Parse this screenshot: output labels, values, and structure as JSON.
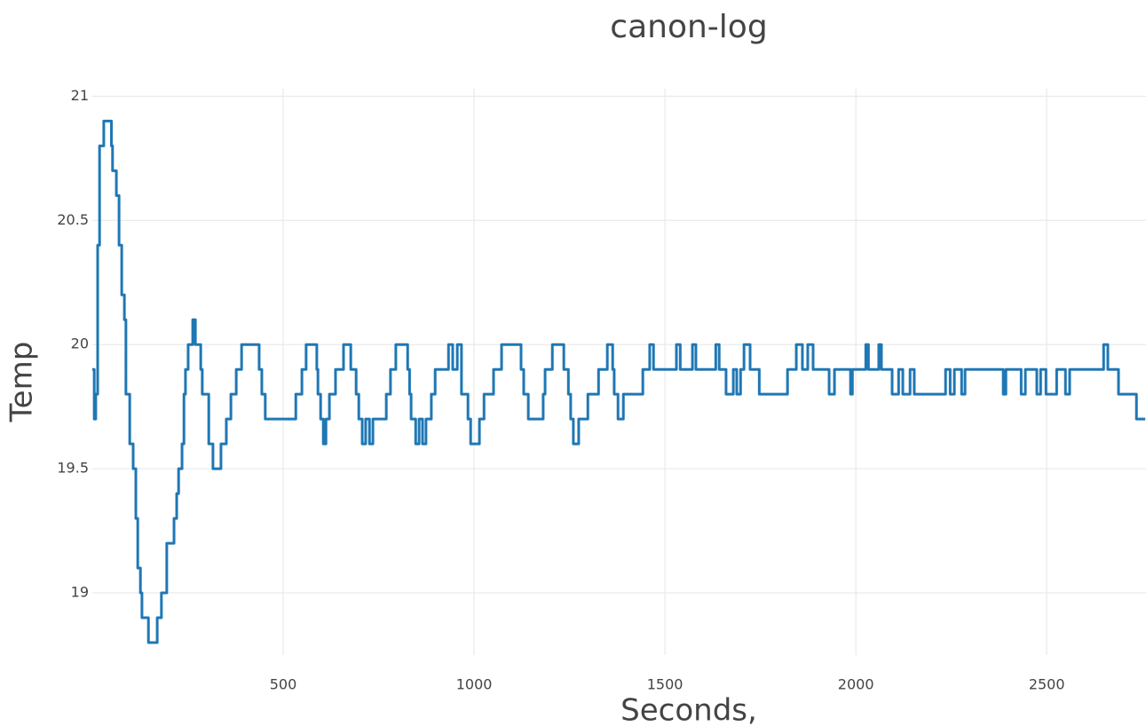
{
  "chart_data": {
    "type": "line",
    "title": "canon-log",
    "x_label": "Seconds,",
    "y_label": "Temp",
    "line_shape": "hv",
    "grid": true,
    "xlim": [
      0,
      2760
    ],
    "ylim": [
      18.75,
      21.03
    ],
    "xticks": [
      500,
      1000,
      1500,
      2000,
      2500
    ],
    "yticks": [
      19,
      19.5,
      20,
      20.5,
      21
    ],
    "x": [
      0,
      5,
      9,
      14,
      19,
      30,
      50,
      53,
      63,
      70,
      77,
      84,
      88,
      98,
      107,
      114,
      119,
      126,
      130,
      147,
      163,
      170,
      181,
      195,
      214,
      221,
      226,
      235,
      240,
      244,
      251,
      263,
      270,
      284,
      288,
      305,
      316,
      337,
      351,
      363,
      377,
      391,
      437,
      444,
      453,
      533,
      549,
      560,
      588,
      591,
      598,
      605,
      612,
      621,
      637,
      658,
      677,
      691,
      698,
      707,
      716,
      726,
      735,
      770,
      781,
      795,
      826,
      831,
      835,
      847,
      856,
      865,
      874,
      888,
      898,
      933,
      944,
      956,
      967,
      984,
      991,
      1014,
      1026,
      1051,
      1072,
      1123,
      1130,
      1142,
      1181,
      1186,
      1205,
      1235,
      1247,
      1253,
      1260,
      1274,
      1298,
      1326,
      1349,
      1363,
      1367,
      1377,
      1391,
      1442,
      1460,
      1470,
      1530,
      1540,
      1572,
      1581,
      1633,
      1642,
      1660,
      1679,
      1688,
      1698,
      1707,
      1723,
      1747,
      1821,
      1844,
      1860,
      1874,
      1888,
      1930,
      1944,
      1986,
      1991,
      2026,
      2033,
      2060,
      2067,
      2095,
      2112,
      2123,
      2142,
      2153,
      2235,
      2247,
      2258,
      2277,
      2286,
      2386,
      2393,
      2433,
      2444,
      2474,
      2484,
      2498,
      2526,
      2549,
      2560,
      2649,
      2660,
      2688,
      2735,
      2758
    ],
    "series": [
      {
        "color": "#1f77b4",
        "values": [
          19.9,
          19.7,
          19.8,
          20.4,
          20.8,
          20.9,
          20.8,
          20.7,
          20.6,
          20.4,
          20.2,
          20.1,
          19.8,
          19.6,
          19.5,
          19.3,
          19.1,
          19,
          18.9,
          18.8,
          18.8,
          18.9,
          19,
          19.2,
          19.3,
          19.4,
          19.5,
          19.6,
          19.8,
          19.9,
          20,
          20.1,
          20,
          19.9,
          19.8,
          19.6,
          19.5,
          19.6,
          19.7,
          19.8,
          19.9,
          20,
          19.9,
          19.8,
          19.7,
          19.8,
          19.9,
          20,
          19.9,
          19.8,
          19.7,
          19.6,
          19.7,
          19.8,
          19.9,
          20,
          19.9,
          19.8,
          19.7,
          19.6,
          19.7,
          19.6,
          19.7,
          19.8,
          19.9,
          20,
          19.9,
          19.8,
          19.7,
          19.6,
          19.7,
          19.6,
          19.7,
          19.8,
          19.9,
          20,
          19.9,
          20,
          19.8,
          19.7,
          19.6,
          19.7,
          19.8,
          19.9,
          20,
          19.9,
          19.8,
          19.7,
          19.8,
          19.9,
          20,
          19.9,
          19.8,
          19.7,
          19.6,
          19.7,
          19.8,
          19.9,
          20,
          19.9,
          19.8,
          19.7,
          19.8,
          19.9,
          20,
          19.9,
          20,
          19.9,
          20,
          19.9,
          20,
          19.9,
          19.8,
          19.9,
          19.8,
          19.9,
          20,
          19.9,
          19.8,
          19.9,
          20,
          19.9,
          20,
          19.9,
          19.8,
          19.9,
          19.8,
          19.9,
          20,
          19.9,
          20,
          19.9,
          19.8,
          19.9,
          19.8,
          19.9,
          19.8,
          19.9,
          19.8,
          19.9,
          19.8,
          19.9,
          19.8,
          19.9,
          19.8,
          19.9,
          19.8,
          19.9,
          19.8,
          19.9,
          19.8,
          19.9,
          20,
          19.9,
          19.8,
          19.7,
          19.7
        ]
      }
    ]
  }
}
